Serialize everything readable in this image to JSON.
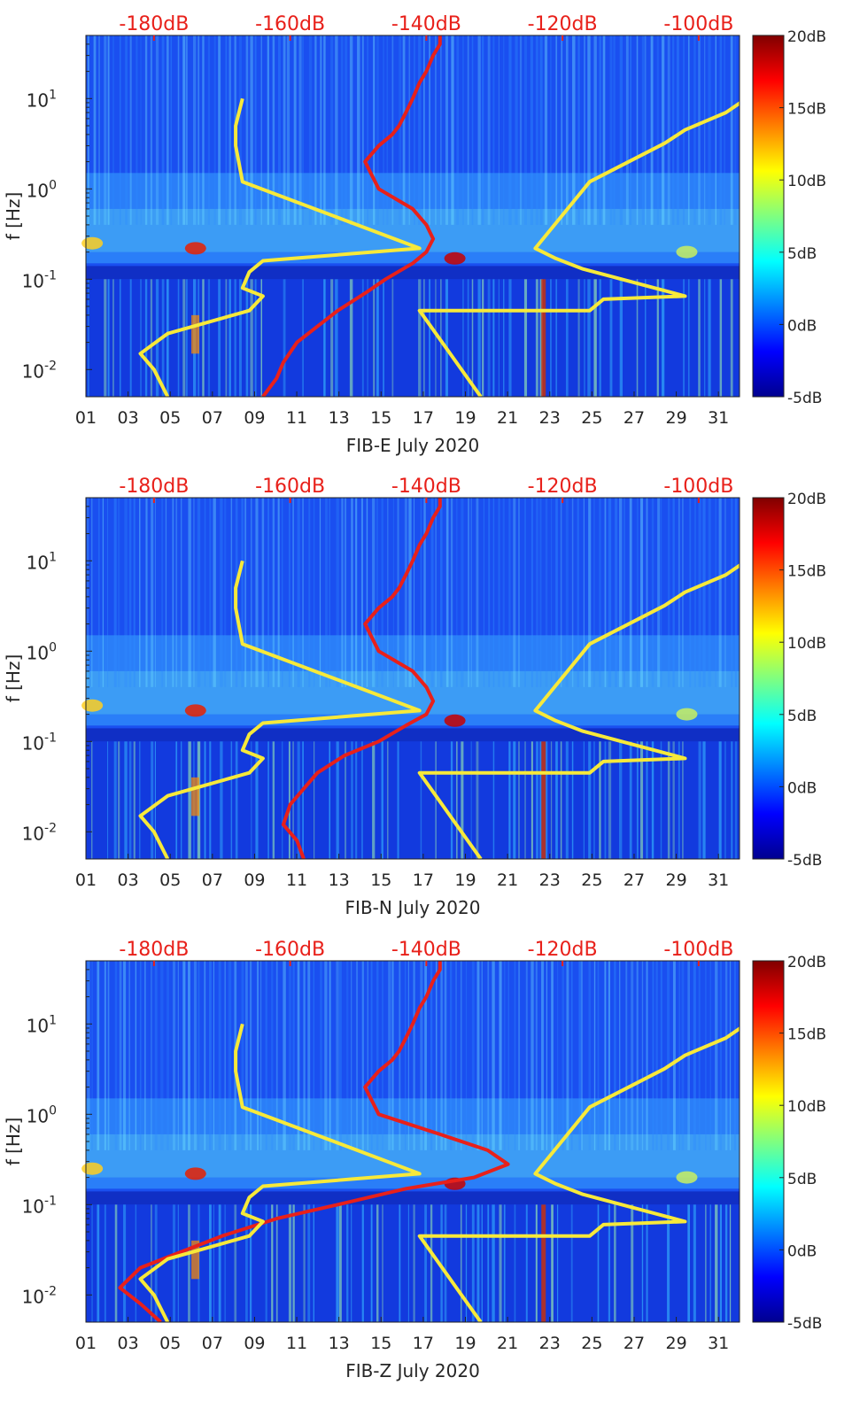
{
  "chart_data": [
    {
      "type": "heatmap",
      "title": "FIB-E July 2020",
      "xlabel": "FIB-E July 2020",
      "ylabel": "f [Hz]",
      "x_ticks": [
        "01",
        "03",
        "05",
        "07",
        "09",
        "11",
        "13",
        "15",
        "17",
        "19",
        "21",
        "23",
        "25",
        "27",
        "29",
        "31"
      ],
      "x_range_days": [
        1,
        32
      ],
      "y_ticks": [
        {
          "base": "10",
          "exp": "1",
          "value": 10
        },
        {
          "base": "10",
          "exp": "0",
          "value": 1
        },
        {
          "base": "10",
          "exp": "-1",
          "value": 0.1
        },
        {
          "base": "10",
          "exp": "-2",
          "value": 0.01
        }
      ],
      "y_range_hz": [
        0.005,
        50
      ],
      "top_axis_labels": [
        "-180dB",
        "-160dB",
        "-140dB",
        "-120dB",
        "-100dB"
      ],
      "top_axis_range_db": [
        -190,
        -94
      ],
      "colorbar": {
        "ticks": [
          "20dB",
          "15dB",
          "10dB",
          "5dB",
          "0dB",
          "-5dB"
        ],
        "range_db": [
          -5,
          20
        ]
      },
      "series": [
        {
          "name": "red curve",
          "color": "#e8201a",
          "db": [
            -164,
            -162,
            -161,
            -159,
            -156,
            -153,
            -149,
            -146,
            -142,
            -140,
            -139,
            -140,
            -142,
            -147,
            -149,
            -147,
            -145,
            -144,
            -143,
            -142,
            -141,
            -140,
            -139,
            -138,
            -138
          ],
          "freq": [
            0.005,
            0.008,
            0.012,
            0.02,
            0.03,
            0.045,
            0.07,
            0.1,
            0.15,
            0.2,
            0.28,
            0.4,
            0.6,
            1.0,
            2.0,
            3.0,
            4.0,
            5.0,
            7.0,
            10.0,
            15.0,
            20.0,
            30.0,
            40.0,
            50.0
          ]
        },
        {
          "name": "yellow low-noise model",
          "color": "#f7e93a",
          "db": [
            -178,
            -180,
            -182,
            -178,
            -166,
            -164,
            -167,
            -166,
            -164,
            -141,
            -167,
            -168,
            -168,
            -167
          ],
          "freq": [
            0.005,
            0.01,
            0.015,
            0.025,
            0.045,
            0.065,
            0.08,
            0.12,
            0.16,
            0.22,
            1.2,
            3.0,
            5.0,
            10.0
          ]
        },
        {
          "name": "yellow high-noise model",
          "color": "#f7e93a",
          "db": [
            -132,
            -141,
            -116,
            -114,
            -102,
            -117,
            -121,
            -124,
            -116,
            -105,
            -102,
            -96,
            -93
          ],
          "freq": [
            0.005,
            0.045,
            0.045,
            0.06,
            0.065,
            0.13,
            0.17,
            0.22,
            1.2,
            3.2,
            4.5,
            7.0,
            10.0
          ]
        }
      ]
    },
    {
      "type": "heatmap",
      "title": "FIB-N July 2020",
      "xlabel": "FIB-N July 2020",
      "ylabel": "f [Hz]",
      "x_ticks": [
        "01",
        "03",
        "05",
        "07",
        "09",
        "11",
        "13",
        "15",
        "17",
        "19",
        "21",
        "23",
        "25",
        "27",
        "29",
        "31"
      ],
      "x_range_days": [
        1,
        32
      ],
      "y_ticks": [
        {
          "base": "10",
          "exp": "1",
          "value": 10
        },
        {
          "base": "10",
          "exp": "0",
          "value": 1
        },
        {
          "base": "10",
          "exp": "-1",
          "value": 0.1
        },
        {
          "base": "10",
          "exp": "-2",
          "value": 0.01
        }
      ],
      "y_range_hz": [
        0.005,
        50
      ],
      "top_axis_labels": [
        "-180dB",
        "-160dB",
        "-140dB",
        "-120dB",
        "-100dB"
      ],
      "top_axis_range_db": [
        -190,
        -94
      ],
      "colorbar": {
        "ticks": [
          "20dB",
          "15dB",
          "10dB",
          "5dB",
          "0dB",
          "-5dB"
        ],
        "range_db": [
          -5,
          20
        ]
      },
      "series": [
        {
          "name": "red curve",
          "color": "#e8201a",
          "db": [
            -158,
            -159,
            -161,
            -160,
            -158,
            -156,
            -152,
            -147,
            -143,
            -140,
            -139,
            -140,
            -142,
            -147,
            -149,
            -147,
            -145,
            -144,
            -143,
            -142,
            -141,
            -140,
            -139,
            -138,
            -138
          ],
          "freq": [
            0.005,
            0.008,
            0.012,
            0.02,
            0.03,
            0.045,
            0.07,
            0.1,
            0.15,
            0.2,
            0.28,
            0.4,
            0.6,
            1.0,
            2.0,
            3.0,
            4.0,
            5.0,
            7.0,
            10.0,
            15.0,
            20.0,
            30.0,
            40.0,
            50.0
          ]
        },
        {
          "name": "yellow low-noise model",
          "color": "#f7e93a",
          "db": [
            -178,
            -180,
            -182,
            -178,
            -166,
            -164,
            -167,
            -166,
            -164,
            -141,
            -167,
            -168,
            -168,
            -167
          ],
          "freq": [
            0.005,
            0.01,
            0.015,
            0.025,
            0.045,
            0.065,
            0.08,
            0.12,
            0.16,
            0.22,
            1.2,
            3.0,
            5.0,
            10.0
          ]
        },
        {
          "name": "yellow high-noise model",
          "color": "#f7e93a",
          "db": [
            -132,
            -141,
            -116,
            -114,
            -102,
            -117,
            -121,
            -124,
            -116,
            -105,
            -102,
            -96,
            -93
          ],
          "freq": [
            0.005,
            0.045,
            0.045,
            0.06,
            0.065,
            0.13,
            0.17,
            0.22,
            1.2,
            3.2,
            4.5,
            7.0,
            10.0
          ]
        }
      ]
    },
    {
      "type": "heatmap",
      "title": "FIB-Z July 2020",
      "xlabel": "FIB-Z July 2020",
      "ylabel": "f [Hz]",
      "x_ticks": [
        "01",
        "03",
        "05",
        "07",
        "09",
        "11",
        "13",
        "15",
        "17",
        "19",
        "21",
        "23",
        "25",
        "27",
        "29",
        "31"
      ],
      "x_range_days": [
        1,
        32
      ],
      "y_ticks": [
        {
          "base": "10",
          "exp": "1",
          "value": 10
        },
        {
          "base": "10",
          "exp": "0",
          "value": 1
        },
        {
          "base": "10",
          "exp": "-1",
          "value": 0.1
        },
        {
          "base": "10",
          "exp": "-2",
          "value": 0.01
        }
      ],
      "y_range_hz": [
        0.005,
        50
      ],
      "top_axis_labels": [
        "-180dB",
        "-160dB",
        "-140dB",
        "-120dB",
        "-100dB"
      ],
      "top_axis_range_db": [
        -190,
        -94
      ],
      "colorbar": {
        "ticks": [
          "20dB",
          "15dB",
          "10dB",
          "5dB",
          "0dB",
          "-5dB"
        ],
        "range_db": [
          -5,
          20
        ]
      },
      "series": [
        {
          "name": "red curve",
          "color": "#e8201a",
          "db": [
            -179,
            -182,
            -185,
            -182,
            -176,
            -170,
            -162,
            -153,
            -143,
            -133,
            -128,
            -131,
            -138,
            -147,
            -149,
            -147,
            -145,
            -144,
            -143,
            -142,
            -141,
            -140,
            -139,
            -138,
            -138
          ],
          "freq": [
            0.005,
            0.008,
            0.012,
            0.02,
            0.03,
            0.045,
            0.07,
            0.1,
            0.15,
            0.2,
            0.28,
            0.4,
            0.6,
            1.0,
            2.0,
            3.0,
            4.0,
            5.0,
            7.0,
            10.0,
            15.0,
            20.0,
            30.0,
            40.0,
            50.0
          ]
        },
        {
          "name": "yellow low-noise model",
          "color": "#f7e93a",
          "db": [
            -178,
            -180,
            -182,
            -178,
            -166,
            -164,
            -167,
            -166,
            -164,
            -141,
            -167,
            -168,
            -168,
            -167
          ],
          "freq": [
            0.005,
            0.01,
            0.015,
            0.025,
            0.045,
            0.065,
            0.08,
            0.12,
            0.16,
            0.22,
            1.2,
            3.0,
            5.0,
            10.0
          ]
        },
        {
          "name": "yellow high-noise model",
          "color": "#f7e93a",
          "db": [
            -132,
            -141,
            -116,
            -114,
            -102,
            -117,
            -121,
            -124,
            -116,
            -105,
            -102,
            -96,
            -93
          ],
          "freq": [
            0.005,
            0.045,
            0.045,
            0.06,
            0.065,
            0.13,
            0.17,
            0.22,
            1.2,
            3.2,
            4.5,
            7.0,
            10.0
          ]
        }
      ]
    }
  ]
}
